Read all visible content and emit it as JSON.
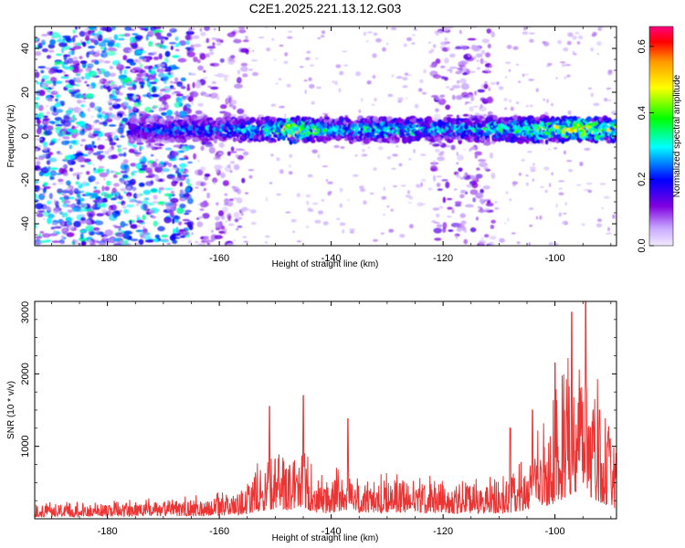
{
  "title": "C2E1.2025.221.13.12.G03",
  "chart_data": [
    {
      "type": "heatmap",
      "xlabel": "Height of straight line (km)",
      "ylabel": "Frequency (Hz)",
      "xlim": [
        -193,
        -89
      ],
      "ylim": [
        -50,
        50
      ],
      "xticks": [
        -180,
        -160,
        -140,
        -120,
        -100
      ],
      "yticks": [
        -40,
        -20,
        0,
        20,
        40
      ],
      "colorbar": {
        "label": "Normalized spectral amplitude",
        "range": [
          0.0,
          0.66
        ],
        "ticks": [
          0.0,
          0.2,
          0.4,
          0.6
        ],
        "colormap": [
          "#e8ddff",
          "#7000d8",
          "#0000ff",
          "#00ffff",
          "#00ff00",
          "#ffff00",
          "#ffa000",
          "#ff0000",
          "#ff0080"
        ]
      },
      "band": {
        "center_hz": 3,
        "width_hz": 10,
        "start_km": -176,
        "end_km": -89,
        "amplitude_profile": [
          [
            -176,
            0.25
          ],
          [
            -160,
            0.3
          ],
          [
            -150,
            0.42
          ],
          [
            -147,
            0.62
          ],
          [
            -140,
            0.35
          ],
          [
            -130,
            0.4
          ],
          [
            -120,
            0.35
          ],
          [
            -110,
            0.4
          ],
          [
            -100,
            0.5
          ],
          [
            -96,
            0.66
          ],
          [
            -92,
            0.55
          ],
          [
            -89,
            0.5
          ]
        ]
      },
      "noise_regions": [
        {
          "from_km": -193,
          "to_km": -165,
          "level": 0.18
        },
        {
          "from_km": -165,
          "to_km": -155,
          "level": 0.08
        },
        {
          "from_km": -122,
          "to_km": -111,
          "level": 0.08
        }
      ]
    },
    {
      "type": "line",
      "xlabel": "Height of straight line (km)",
      "ylabel": "SNR (10 * v/v)",
      "xlim": [
        -193,
        -89
      ],
      "ylim": [
        0,
        3000
      ],
      "xticks": [
        -180,
        -160,
        -140,
        -120,
        -100
      ],
      "yticks": [
        1000,
        2000,
        3000
      ],
      "color": "#ee3333",
      "envelope": [
        [
          -193,
          180
        ],
        [
          -175,
          220
        ],
        [
          -165,
          260
        ],
        [
          -157,
          320
        ],
        [
          -153,
          650
        ],
        [
          -150,
          900
        ],
        [
          -147,
          750
        ],
        [
          -145,
          1000
        ],
        [
          -143,
          550
        ],
        [
          -140,
          480
        ],
        [
          -137,
          820
        ],
        [
          -135,
          520
        ],
        [
          -130,
          560
        ],
        [
          -125,
          500
        ],
        [
          -120,
          480
        ],
        [
          -115,
          500
        ],
        [
          -110,
          450
        ],
        [
          -106,
          650
        ],
        [
          -103,
          1000
        ],
        [
          -100,
          1400
        ],
        [
          -98,
          1950
        ],
        [
          -96,
          2500
        ],
        [
          -95,
          2900
        ],
        [
          -94,
          2100
        ],
        [
          -92,
          1500
        ],
        [
          -90,
          1100
        ],
        [
          -89,
          900
        ]
      ],
      "peaks": [
        [
          -151,
          1550
        ],
        [
          -145,
          1700
        ],
        [
          -137,
          1380
        ],
        [
          -108,
          1250
        ],
        [
          -104,
          1500
        ],
        [
          -100,
          2150
        ],
        [
          -97,
          2850
        ],
        [
          -94.5,
          3000
        ],
        [
          -92,
          1500
        ],
        [
          -90.5,
          1200
        ]
      ]
    }
  ]
}
